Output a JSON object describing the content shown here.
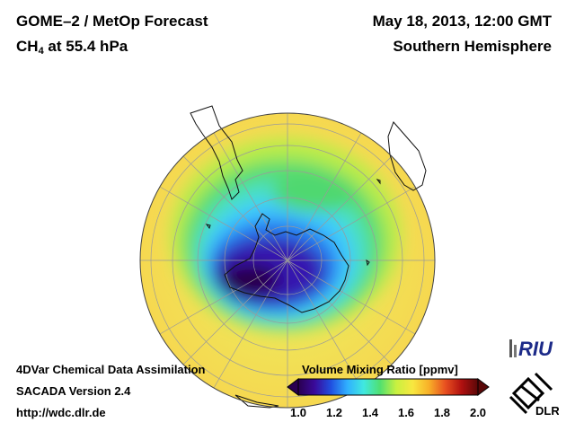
{
  "header": {
    "title_line1": "GOME–2 / MetOp Forecast",
    "title_species": "CH",
    "title_species_sub": "4",
    "title_level": " at 55.4 hPa",
    "date": "May 18, 2013, 12:00 GMT",
    "hemisphere": "Southern Hemisphere"
  },
  "footer": {
    "line1": "4DVar Chemical Data Assimilation",
    "line2": "SACADA Version 2.4",
    "line3": "http://wdc.dlr.de"
  },
  "colorbar": {
    "label": "Volume Mixing Ratio [ppmv]",
    "ticks": [
      "1.0",
      "1.2",
      "1.4",
      "1.6",
      "1.8",
      "2.0"
    ],
    "min": 1.0,
    "max": 2.0,
    "colors": [
      "#2a0050",
      "#3a0a9a",
      "#2050e0",
      "#30b0ff",
      "#40e8e0",
      "#50e070",
      "#c8f040",
      "#f8e840",
      "#f8b028",
      "#e85020",
      "#b01010",
      "#5a0808"
    ]
  },
  "logos": {
    "riu": "RIU",
    "dlr": "DLR"
  },
  "map": {
    "projection": "orthographic",
    "center": "South Pole",
    "ocean_color": "#f0de58"
  }
}
